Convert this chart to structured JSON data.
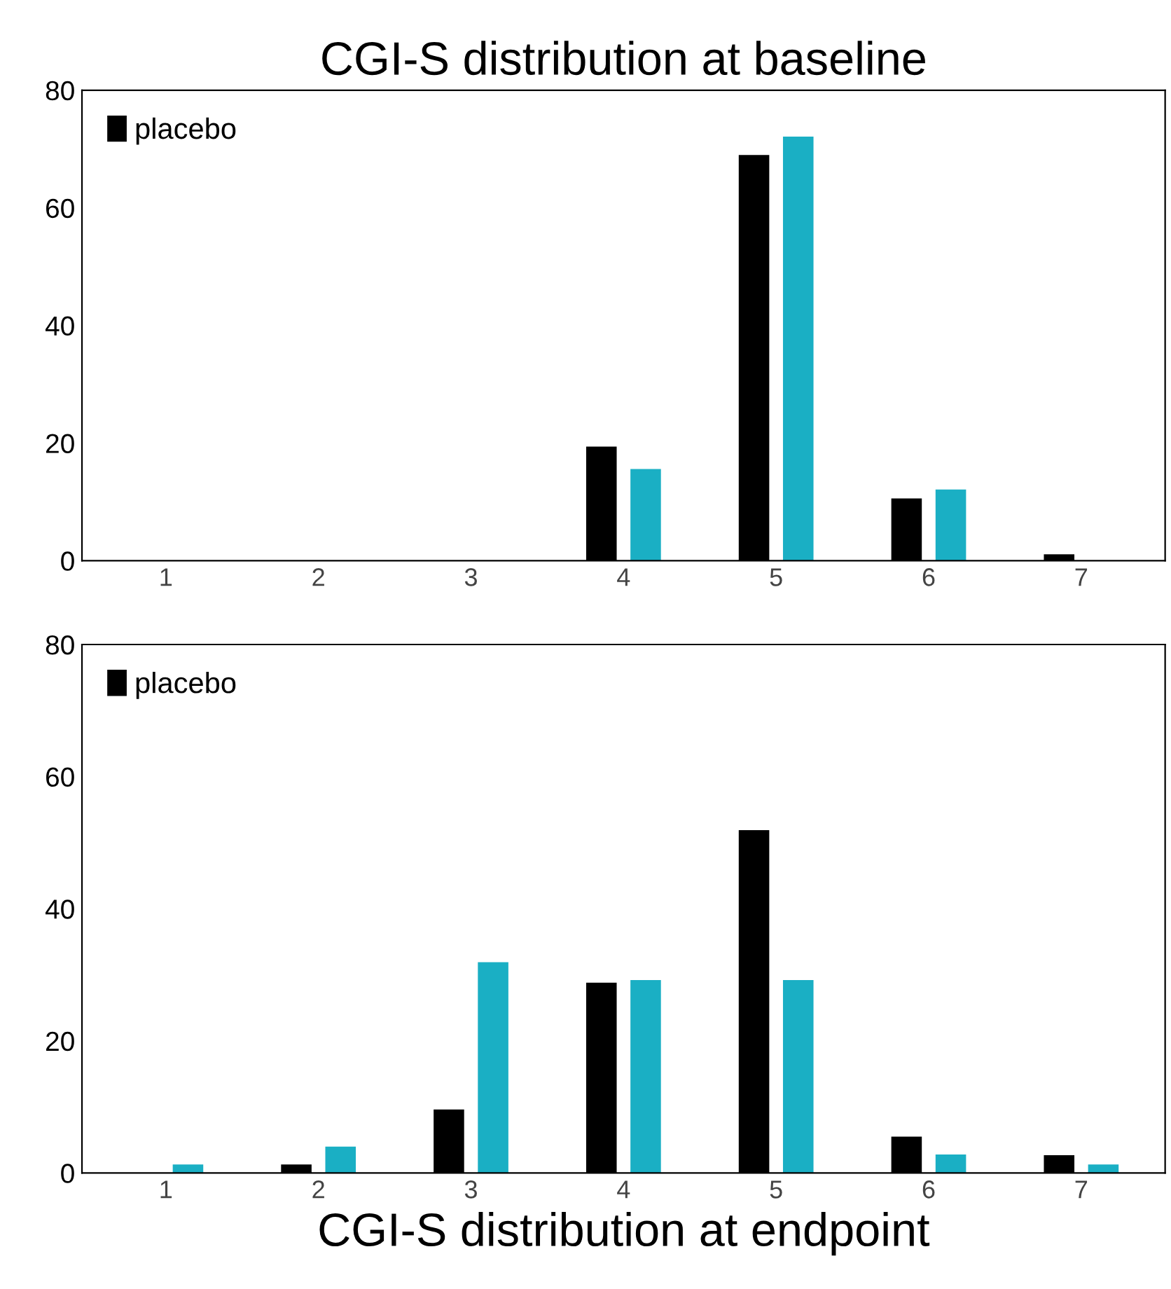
{
  "chart_data": [
    {
      "type": "bar",
      "title": "CGI-S distribution at baseline",
      "categories": [
        "1",
        "2",
        "3",
        "4",
        "5",
        "6",
        "7"
      ],
      "series": [
        {
          "name": "placebo",
          "color": "#000000",
          "values": [
            0,
            0,
            0,
            19.4,
            69.0,
            10.6,
            1.1
          ]
        },
        {
          "color": "#1aafc4",
          "values": [
            0,
            0,
            0,
            15.6,
            72.1,
            12.1,
            0
          ]
        }
      ],
      "ylim": [
        0,
        80
      ],
      "yticks": [
        0,
        20,
        40,
        60,
        80
      ],
      "grid": false,
      "legend": "top left"
    },
    {
      "type": "bar",
      "title": "CGI-S distribution at endpoint",
      "categories": [
        "1",
        "2",
        "3",
        "4",
        "5",
        "6",
        "7"
      ],
      "series": [
        {
          "name": "placebo",
          "color": "#000000",
          "values": [
            0,
            1.3,
            9.6,
            28.8,
            51.9,
            5.5,
            2.7
          ]
        },
        {
          "color": "#1aafc4",
          "values": [
            1.3,
            4.0,
            31.9,
            29.2,
            29.2,
            2.8,
            1.3
          ]
        }
      ],
      "ylim": [
        0,
        80
      ],
      "yticks": [
        0,
        20,
        40,
        60,
        80
      ],
      "grid": false,
      "legend": "top left"
    }
  ]
}
